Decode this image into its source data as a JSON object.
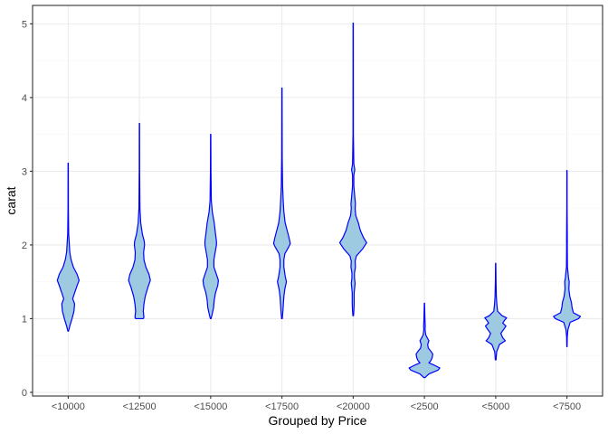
{
  "chart_data": {
    "type": "violin",
    "title": "",
    "xlabel": "Grouped by Price",
    "ylabel": "carat",
    "ylim": [
      -0.05,
      5.25
    ],
    "yticks": [
      0,
      1,
      2,
      3,
      4,
      5
    ],
    "grid": true,
    "theme": "bw",
    "colors": {
      "fill": "#9ecae1",
      "outline": "#0000ff",
      "grid_major": "#ebebeb",
      "grid_minor": "#f5f5f5",
      "panel_border": "#333333"
    },
    "categories": [
      "<10000",
      "<12500",
      "<15000",
      "<17500",
      "<20000",
      "<2500",
      "<5000",
      "<7500"
    ],
    "violins": [
      {
        "category": "<10000",
        "min": 0.83,
        "max": 3.11,
        "profile": [
          [
            0.83,
            0.01
          ],
          [
            0.9,
            0.05
          ],
          [
            1.0,
            0.12
          ],
          [
            1.1,
            0.18
          ],
          [
            1.2,
            0.2
          ],
          [
            1.27,
            0.14
          ],
          [
            1.35,
            0.2
          ],
          [
            1.45,
            0.28
          ],
          [
            1.52,
            0.34
          ],
          [
            1.6,
            0.28
          ],
          [
            1.7,
            0.16
          ],
          [
            1.8,
            0.09
          ],
          [
            1.9,
            0.05
          ],
          [
            2.0,
            0.035
          ],
          [
            2.05,
            0.03
          ],
          [
            2.15,
            0.015
          ],
          [
            2.5,
            0.006
          ],
          [
            3.11,
            0.004
          ]
        ]
      },
      {
        "category": "<12500",
        "min": 1.0,
        "max": 3.65,
        "profile": [
          [
            1.0,
            0.12
          ],
          [
            1.02,
            0.14
          ],
          [
            1.1,
            0.12
          ],
          [
            1.2,
            0.14
          ],
          [
            1.3,
            0.18
          ],
          [
            1.42,
            0.26
          ],
          [
            1.52,
            0.34
          ],
          [
            1.6,
            0.3
          ],
          [
            1.7,
            0.2
          ],
          [
            1.8,
            0.14
          ],
          [
            1.9,
            0.13
          ],
          [
            2.0,
            0.16
          ],
          [
            2.05,
            0.15
          ],
          [
            2.15,
            0.09
          ],
          [
            2.3,
            0.04
          ],
          [
            2.5,
            0.015
          ],
          [
            3.0,
            0.006
          ],
          [
            3.65,
            0.004
          ]
        ]
      },
      {
        "category": "<15000",
        "min": 1.0,
        "max": 3.5,
        "profile": [
          [
            1.0,
            0.01
          ],
          [
            1.05,
            0.04
          ],
          [
            1.15,
            0.09
          ],
          [
            1.25,
            0.11
          ],
          [
            1.35,
            0.15
          ],
          [
            1.45,
            0.22
          ],
          [
            1.52,
            0.24
          ],
          [
            1.6,
            0.18
          ],
          [
            1.7,
            0.1
          ],
          [
            1.8,
            0.1
          ],
          [
            1.9,
            0.14
          ],
          [
            2.0,
            0.18
          ],
          [
            2.05,
            0.18
          ],
          [
            2.15,
            0.15
          ],
          [
            2.3,
            0.11
          ],
          [
            2.45,
            0.05
          ],
          [
            2.6,
            0.02
          ],
          [
            3.0,
            0.008
          ],
          [
            3.5,
            0.004
          ]
        ]
      },
      {
        "category": "<17500",
        "min": 1.0,
        "max": 4.13,
        "profile": [
          [
            1.0,
            0.01
          ],
          [
            1.1,
            0.03
          ],
          [
            1.3,
            0.06
          ],
          [
            1.4,
            0.09
          ],
          [
            1.5,
            0.14
          ],
          [
            1.58,
            0.1
          ],
          [
            1.7,
            0.06
          ],
          [
            1.8,
            0.06
          ],
          [
            1.88,
            0.09
          ],
          [
            1.98,
            0.22
          ],
          [
            2.02,
            0.26
          ],
          [
            2.1,
            0.22
          ],
          [
            2.2,
            0.16
          ],
          [
            2.3,
            0.1
          ],
          [
            2.45,
            0.06
          ],
          [
            2.6,
            0.04
          ],
          [
            2.8,
            0.02
          ],
          [
            3.2,
            0.008
          ],
          [
            4.13,
            0.004
          ]
        ]
      },
      {
        "category": "<20000",
        "min": 1.04,
        "max": 5.01,
        "profile": [
          [
            1.04,
            0.01
          ],
          [
            1.1,
            0.02
          ],
          [
            1.2,
            0.03
          ],
          [
            1.35,
            0.03
          ],
          [
            1.48,
            0.06
          ],
          [
            1.55,
            0.04
          ],
          [
            1.62,
            0.04
          ],
          [
            1.7,
            0.07
          ],
          [
            1.78,
            0.06
          ],
          [
            1.85,
            0.1
          ],
          [
            1.95,
            0.3
          ],
          [
            2.03,
            0.42
          ],
          [
            2.1,
            0.32
          ],
          [
            2.2,
            0.22
          ],
          [
            2.3,
            0.16
          ],
          [
            2.4,
            0.08
          ],
          [
            2.5,
            0.06
          ],
          [
            2.56,
            0.07
          ],
          [
            2.65,
            0.05
          ],
          [
            2.8,
            0.02
          ],
          [
            2.95,
            0.02
          ],
          [
            3.02,
            0.05
          ],
          [
            3.1,
            0.02
          ],
          [
            3.5,
            0.006
          ],
          [
            5.01,
            0.004
          ]
        ]
      },
      {
        "category": "<2500",
        "min": 0.2,
        "max": 1.21,
        "profile": [
          [
            0.2,
            0.02
          ],
          [
            0.25,
            0.14
          ],
          [
            0.3,
            0.42
          ],
          [
            0.33,
            0.48
          ],
          [
            0.37,
            0.3
          ],
          [
            0.4,
            0.14
          ],
          [
            0.43,
            0.2
          ],
          [
            0.47,
            0.24
          ],
          [
            0.52,
            0.26
          ],
          [
            0.57,
            0.18
          ],
          [
            0.6,
            0.12
          ],
          [
            0.65,
            0.1
          ],
          [
            0.7,
            0.14
          ],
          [
            0.73,
            0.1
          ],
          [
            0.78,
            0.04
          ],
          [
            0.85,
            0.02
          ],
          [
            0.9,
            0.025
          ],
          [
            1.0,
            0.015
          ],
          [
            1.21,
            0.004
          ]
        ]
      },
      {
        "category": "<5000",
        "min": 0.44,
        "max": 1.75,
        "profile": [
          [
            0.44,
            0.01
          ],
          [
            0.55,
            0.03
          ],
          [
            0.65,
            0.12
          ],
          [
            0.7,
            0.3
          ],
          [
            0.74,
            0.22
          ],
          [
            0.8,
            0.16
          ],
          [
            0.86,
            0.26
          ],
          [
            0.9,
            0.32
          ],
          [
            0.94,
            0.22
          ],
          [
            0.98,
            0.28
          ],
          [
            1.01,
            0.34
          ],
          [
            1.04,
            0.2
          ],
          [
            1.1,
            0.06
          ],
          [
            1.2,
            0.035
          ],
          [
            1.3,
            0.02
          ],
          [
            1.5,
            0.01
          ],
          [
            1.75,
            0.004
          ]
        ]
      },
      {
        "category": "<7500",
        "min": 0.62,
        "max": 3.01,
        "profile": [
          [
            0.62,
            0.005
          ],
          [
            0.75,
            0.01
          ],
          [
            0.85,
            0.03
          ],
          [
            0.95,
            0.1
          ],
          [
            1.0,
            0.36
          ],
          [
            1.03,
            0.42
          ],
          [
            1.08,
            0.2
          ],
          [
            1.15,
            0.16
          ],
          [
            1.22,
            0.14
          ],
          [
            1.3,
            0.09
          ],
          [
            1.4,
            0.06
          ],
          [
            1.5,
            0.07
          ],
          [
            1.55,
            0.05
          ],
          [
            1.7,
            0.015
          ],
          [
            2.0,
            0.01
          ],
          [
            2.05,
            0.012
          ],
          [
            2.5,
            0.005
          ],
          [
            3.01,
            0.004
          ]
        ]
      }
    ]
  }
}
